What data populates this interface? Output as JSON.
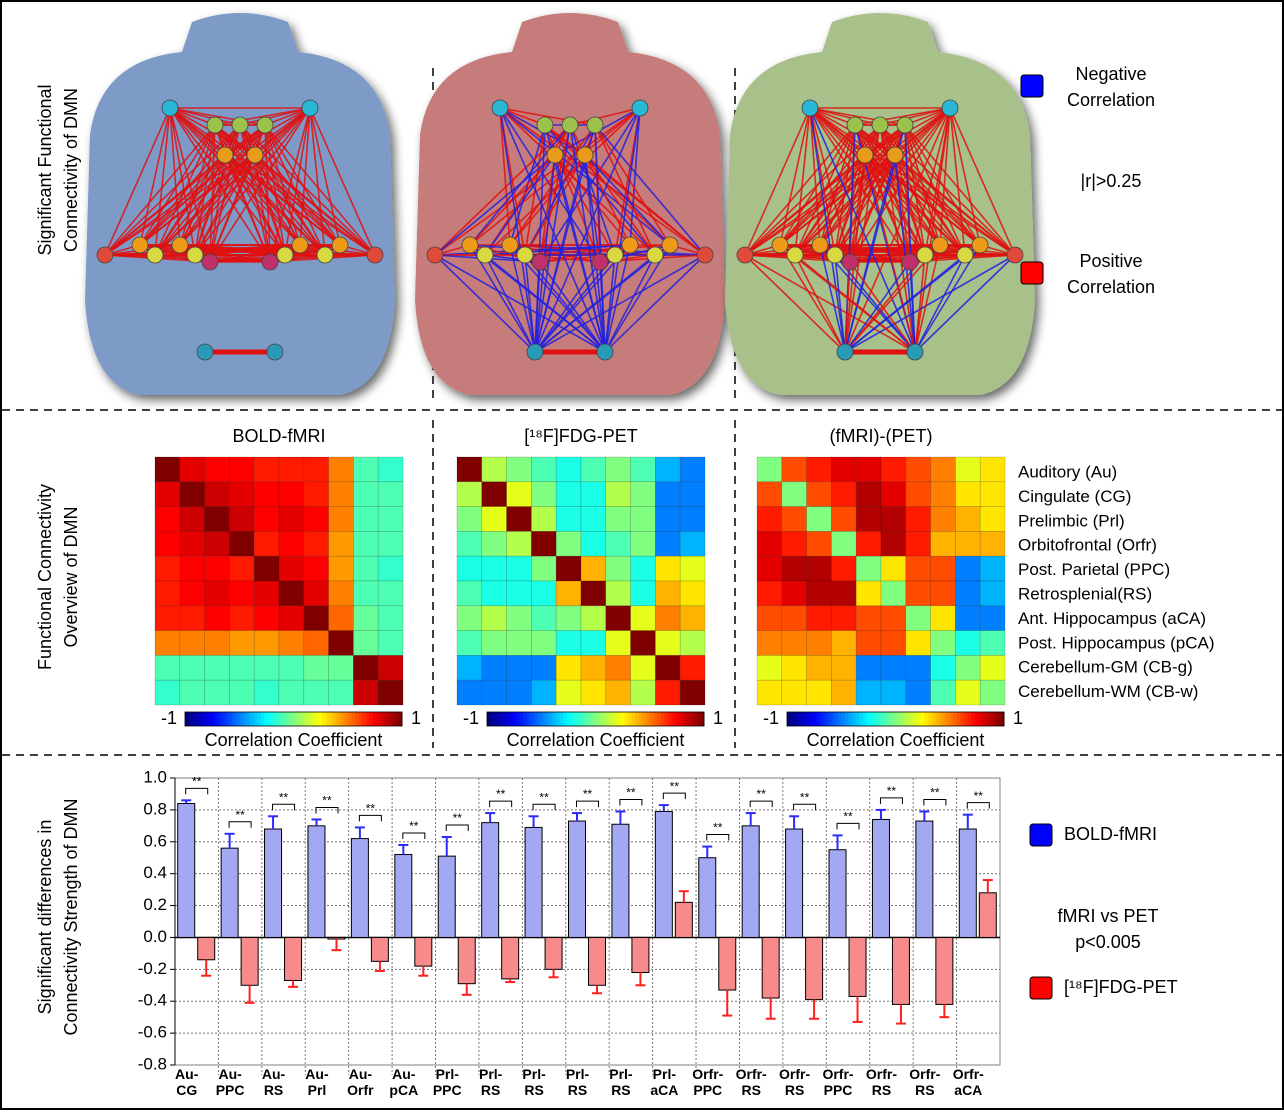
{
  "network": {
    "ylabel": [
      "Significant Functional",
      "Connectivity of DMN"
    ],
    "legend": {
      "negative": [
        "Negative",
        "Correlation"
      ],
      "threshold": "|r|>0.25",
      "positive": [
        "Positive",
        "Correlation"
      ]
    }
  },
  "overview": {
    "ylabel": [
      "Functional Connectivity",
      "Overview of DMN"
    ],
    "regions": [
      "Auditory (Au)",
      "Cingulate (CG)",
      "Prelimbic (Prl)",
      "Orbitofrontal (Orfr)",
      "Post. Parietal (PPC)",
      "Retrosplenial(RS)",
      "Ant. Hippocampus (aCA)",
      "Post. Hippocampus (pCA)",
      "Cerebellum-GM (CB-g)",
      "Cerebellum-WM (CB-w)"
    ]
  },
  "heatmaps": [
    {
      "title": "BOLD-fMRI",
      "colorbar_label": "Correlation Coefficient",
      "clim": [
        -1,
        1
      ],
      "matrix": [
        [
          1,
          0.8,
          0.75,
          0.75,
          0.7,
          0.7,
          0.7,
          0.5,
          -0.1,
          -0.15
        ],
        [
          0.8,
          1,
          0.85,
          0.8,
          0.75,
          0.75,
          0.7,
          0.5,
          -0.1,
          -0.1
        ],
        [
          0.75,
          0.85,
          1,
          0.85,
          0.75,
          0.8,
          0.75,
          0.5,
          -0.1,
          -0.1
        ],
        [
          0.75,
          0.8,
          0.85,
          1,
          0.7,
          0.75,
          0.7,
          0.45,
          -0.1,
          -0.1
        ],
        [
          0.7,
          0.75,
          0.75,
          0.7,
          1,
          0.8,
          0.75,
          0.45,
          -0.1,
          -0.15
        ],
        [
          0.7,
          0.75,
          0.8,
          0.75,
          0.8,
          1,
          0.8,
          0.5,
          -0.1,
          -0.1
        ],
        [
          0.7,
          0.7,
          0.75,
          0.7,
          0.75,
          0.8,
          1,
          0.55,
          -0.05,
          -0.1
        ],
        [
          0.5,
          0.5,
          0.5,
          0.45,
          0.45,
          0.5,
          0.55,
          1,
          -0.05,
          -0.1
        ],
        [
          -0.1,
          -0.1,
          -0.1,
          -0.1,
          -0.1,
          -0.1,
          -0.05,
          -0.05,
          1,
          0.85
        ],
        [
          -0.15,
          -0.1,
          -0.1,
          -0.1,
          -0.15,
          -0.1,
          -0.1,
          -0.1,
          0.85,
          1
        ]
      ]
    },
    {
      "title": "[¹⁸F]FDG-PET",
      "colorbar_label": "Correlation Coefficient",
      "clim": [
        -1,
        1
      ],
      "matrix": [
        [
          1,
          0.1,
          0,
          -0.1,
          -0.2,
          -0.1,
          0,
          -0.1,
          -0.4,
          -0.5
        ],
        [
          0.1,
          1,
          0.2,
          0,
          -0.2,
          -0.2,
          0.1,
          0,
          -0.5,
          -0.5
        ],
        [
          0,
          0.2,
          1,
          0.1,
          -0.2,
          -0.2,
          0,
          0,
          -0.5,
          -0.5
        ],
        [
          -0.1,
          0,
          0.1,
          1,
          0,
          -0.2,
          -0.1,
          0,
          -0.5,
          -0.4
        ],
        [
          -0.2,
          -0.2,
          -0.2,
          0,
          1,
          0.4,
          0,
          -0.2,
          0.3,
          0.2
        ],
        [
          -0.1,
          -0.2,
          -0.2,
          -0.2,
          0.4,
          1,
          0.1,
          -0.2,
          0.4,
          0.3
        ],
        [
          0,
          0.1,
          0,
          -0.1,
          0,
          0.1,
          1,
          0.2,
          0.5,
          0.4
        ],
        [
          -0.1,
          0,
          0,
          0,
          -0.2,
          -0.2,
          0.2,
          1,
          0.2,
          0.1
        ],
        [
          -0.4,
          -0.5,
          -0.5,
          -0.5,
          0.3,
          0.4,
          0.5,
          0.2,
          1,
          0.7
        ],
        [
          -0.5,
          -0.5,
          -0.5,
          -0.4,
          0.2,
          0.3,
          0.4,
          0.1,
          0.7,
          1
        ]
      ]
    },
    {
      "title": "(fMRI)-(PET)",
      "colorbar_label": "Correlation Coefficient",
      "clim": [
        -1,
        1
      ],
      "matrix": [
        [
          0,
          0.6,
          0.7,
          0.8,
          0.8,
          0.7,
          0.6,
          0.5,
          0.2,
          0.3
        ],
        [
          0.6,
          0,
          0.6,
          0.7,
          0.9,
          0.8,
          0.6,
          0.5,
          0.3,
          0.3
        ],
        [
          0.7,
          0.6,
          0,
          0.6,
          0.9,
          0.9,
          0.7,
          0.5,
          0.4,
          0.3
        ],
        [
          0.8,
          0.7,
          0.6,
          0,
          0.7,
          0.9,
          0.7,
          0.4,
          0.4,
          0.4
        ],
        [
          0.8,
          0.9,
          0.9,
          0.7,
          0,
          0.3,
          0.6,
          0.6,
          -0.5,
          -0.4
        ],
        [
          0.7,
          0.8,
          0.9,
          0.9,
          0.3,
          0,
          0.6,
          0.6,
          -0.5,
          -0.4
        ],
        [
          0.6,
          0.6,
          0.7,
          0.7,
          0.6,
          0.6,
          0,
          0.3,
          -0.5,
          -0.5
        ],
        [
          0.5,
          0.5,
          0.5,
          0.4,
          0.6,
          0.6,
          0.3,
          0,
          -0.2,
          -0.1
        ],
        [
          0.2,
          0.3,
          0.4,
          0.4,
          -0.5,
          -0.5,
          -0.5,
          -0.2,
          0,
          0.2
        ],
        [
          0.3,
          0.3,
          0.3,
          0.4,
          -0.4,
          -0.4,
          -0.5,
          -0.1,
          0.2,
          0
        ]
      ]
    }
  ],
  "chart_data": {
    "type": "bar",
    "ylabel": [
      "Significant differences in",
      "Connectivity Strength of DMN"
    ],
    "categories": [
      [
        "Au-",
        "CG"
      ],
      [
        "Au-",
        "PPC"
      ],
      [
        "Au-",
        "RS"
      ],
      [
        "Au-",
        "Prl"
      ],
      [
        "Au-",
        "Orfr"
      ],
      [
        "Au-",
        "pCA"
      ],
      [
        "Prl-",
        "PPC"
      ],
      [
        "Prl-",
        "RS"
      ],
      [
        "Prl-",
        "RS"
      ],
      [
        "Prl-",
        "RS"
      ],
      [
        "Prl-",
        "RS"
      ],
      [
        "Prl-",
        "aCA"
      ],
      [
        "Orfr-",
        "PPC"
      ],
      [
        "Orfr-",
        "RS"
      ],
      [
        "Orfr-",
        "RS"
      ],
      [
        "Orfr-",
        "PPC"
      ],
      [
        "Orfr-",
        "RS"
      ],
      [
        "Orfr-",
        "RS"
      ],
      [
        "Orfr-",
        "aCA"
      ]
    ],
    "annotations": [
      "**",
      "**",
      "**",
      "**",
      "**",
      "**",
      "**",
      "**",
      "**",
      "**",
      "**",
      "**",
      "**",
      "**",
      "**",
      "**",
      "**",
      "**",
      "**"
    ],
    "series": [
      {
        "name": "BOLD-fMRI",
        "color": "#a3a8f2",
        "error_color": "#2b2bff",
        "values": [
          0.84,
          0.56,
          0.68,
          0.7,
          0.62,
          0.52,
          0.51,
          0.72,
          0.69,
          0.73,
          0.71,
          0.79,
          0.5,
          0.7,
          0.68,
          0.55,
          0.74,
          0.73,
          0.68
        ],
        "errors": [
          0.02,
          0.09,
          0.08,
          0.04,
          0.07,
          0.06,
          0.12,
          0.06,
          0.07,
          0.05,
          0.08,
          0.04,
          0.07,
          0.08,
          0.08,
          0.09,
          0.06,
          0.06,
          0.09
        ]
      },
      {
        "name": "[¹⁸F]FDG-PET",
        "color": "#f78a8a",
        "error_color": "#ff1f1f",
        "values": [
          -0.14,
          -0.3,
          -0.27,
          -0.01,
          -0.15,
          -0.18,
          -0.29,
          -0.26,
          -0.2,
          -0.3,
          -0.22,
          0.22,
          -0.33,
          -0.38,
          -0.39,
          -0.37,
          -0.42,
          -0.42,
          0.28
        ],
        "errors": [
          0.1,
          0.11,
          0.04,
          0.07,
          0.06,
          0.06,
          0.07,
          0.02,
          0.05,
          0.05,
          0.08,
          0.07,
          0.16,
          0.13,
          0.12,
          0.16,
          0.12,
          0.08,
          0.08
        ]
      }
    ],
    "ylim": [
      -0.8,
      1.0
    ],
    "yticks": [
      {
        "value": 1.0,
        "label": "1.0"
      },
      0.8,
      0.6,
      0.4,
      0.2,
      {
        "value": 0.0,
        "label": "0.0"
      },
      -0.2,
      -0.4,
      -0.6,
      -0.8
    ],
    "grid": true,
    "note": [
      "fMRI vs PET",
      "p<0.005"
    ]
  }
}
